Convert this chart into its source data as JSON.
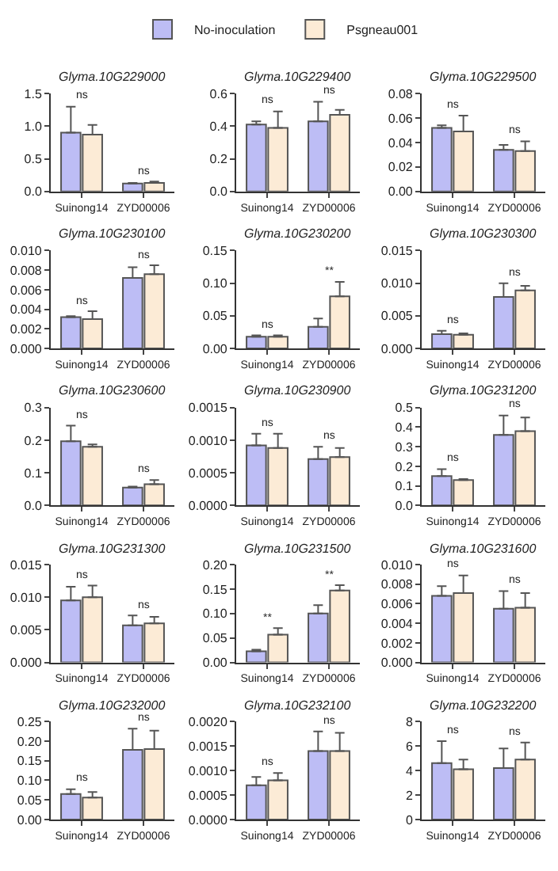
{
  "chart_data": [
    {
      "type": "bar",
      "title": "Glyma.10G229000",
      "categories": [
        "Suinong14",
        "ZYD00006"
      ],
      "legend": "top",
      "series": [
        {
          "name": "No-inoculation",
          "color": "#bdbdf5",
          "values": [
            0.9,
            0.12
          ],
          "errors": [
            [
              0.9,
              1.3
            ],
            [
              0.12,
              0.13
            ]
          ]
        },
        {
          "name": "Psgneau001",
          "color": "#fcebd6",
          "values": [
            0.87,
            0.13
          ],
          "errors": [
            [
              0.87,
              1.02
            ],
            [
              0.13,
              0.15
            ]
          ]
        }
      ],
      "ylim": [
        0,
        1.5
      ],
      "yticks": [
        {
          "value": 0,
          "label": "0.0"
        },
        {
          "value": 0.5,
          "label": "0.5"
        },
        {
          "value": 1,
          "label": "1.0"
        },
        {
          "value": 1.5,
          "label": "1.5"
        }
      ],
      "annotations": [
        {
          "text": "ns",
          "x": "Suinong14",
          "y": 1.3
        },
        {
          "text": "ns",
          "x": "ZYD00006",
          "y": 0.15
        }
      ]
    },
    {
      "type": "bar",
      "title": "Glyma.10G229400",
      "categories": [
        "Suinong14",
        "ZYD00006"
      ],
      "series": [
        {
          "color": "#bdbdf5",
          "values": [
            0.41,
            0.43
          ],
          "errors": [
            [
              0.41,
              0.43
            ],
            [
              0.43,
              0.55
            ]
          ]
        },
        {
          "color": "#fcebd6",
          "values": [
            0.39,
            0.47
          ],
          "errors": [
            [
              0.39,
              0.49
            ],
            [
              0.47,
              0.5
            ]
          ]
        }
      ],
      "ylim": [
        0,
        0.6
      ],
      "yticks": [
        {
          "value": 0,
          "label": "0.0"
        },
        0.2,
        0.4,
        0.6
      ],
      "annotations": [
        {
          "text": "ns",
          "x": "Suinong14",
          "y": 0.49
        },
        {
          "text": "ns",
          "x": "ZYD00006",
          "y": 0.55
        }
      ]
    },
    {
      "type": "bar",
      "title": "Glyma.10G229500",
      "categories": [
        "Suinong14",
        "ZYD00006"
      ],
      "series": [
        {
          "color": "#bdbdf5",
          "values": [
            0.052,
            0.034
          ],
          "errors": [
            [
              0.052,
              0.054
            ],
            [
              0.034,
              0.038
            ]
          ]
        },
        {
          "color": "#fcebd6",
          "values": [
            0.049,
            0.033
          ],
          "errors": [
            [
              0.049,
              0.062
            ],
            [
              0.033,
              0.041
            ]
          ]
        }
      ],
      "ylim": [
        0,
        0.08
      ],
      "yticks": [
        {
          "value": 0,
          "label": "0.00"
        },
        0.02,
        0.04,
        0.06,
        0.08
      ],
      "annotations": [
        {
          "text": "ns",
          "x": "Suinong14",
          "y": 0.062
        },
        {
          "text": "ns",
          "x": "ZYD00006",
          "y": 0.041
        }
      ]
    },
    {
      "type": "bar",
      "title": "Glyma.10G230100",
      "categories": [
        "Suinong14",
        "ZYD00006"
      ],
      "series": [
        {
          "color": "#bdbdf5",
          "values": [
            0.0032,
            0.0072
          ],
          "errors": [
            [
              0.0032,
              0.0033
            ],
            [
              0.0072,
              0.0083
            ]
          ]
        },
        {
          "color": "#fcebd6",
          "values": [
            0.003,
            0.0076
          ],
          "errors": [
            [
              0.003,
              0.0038
            ],
            [
              0.0076,
              0.0085
            ]
          ]
        }
      ],
      "ylim": [
        0,
        0.01
      ],
      "yticks": [
        {
          "value": 0,
          "label": "0.000"
        },
        {
          "value": 0.002,
          "label": "0.002"
        },
        {
          "value": 0.004,
          "label": "0.004"
        },
        {
          "value": 0.006,
          "label": "0.006"
        },
        {
          "value": 0.008,
          "label": "0.008"
        },
        {
          "value": 0.01,
          "label": "0.010"
        }
      ],
      "annotations": [
        {
          "text": "ns",
          "x": "Suinong14",
          "y": 0.0038
        },
        {
          "text": "ns",
          "x": "ZYD00006",
          "y": 0.0085
        }
      ]
    },
    {
      "type": "bar",
      "title": "Glyma.10G230200",
      "categories": [
        "Suinong14",
        "ZYD00006"
      ],
      "series": [
        {
          "color": "#bdbdf5",
          "values": [
            0.018,
            0.033
          ],
          "errors": [
            [
              0.018,
              0.02
            ],
            [
              0.033,
              0.046
            ]
          ]
        },
        {
          "color": "#fcebd6",
          "values": [
            0.018,
            0.08
          ],
          "errors": [
            [
              0.018,
              0.02
            ],
            [
              0.08,
              0.102
            ]
          ]
        }
      ],
      "ylim": [
        0,
        0.15
      ],
      "yticks": [
        {
          "value": 0,
          "label": "0.00"
        },
        {
          "value": 0.05,
          "label": "0.05"
        },
        {
          "value": 0.1,
          "label": "0.10"
        },
        {
          "value": 0.15,
          "label": "0.15"
        }
      ],
      "annotations": [
        {
          "text": "ns",
          "x": "Suinong14",
          "y": 0.02
        },
        {
          "text": "**",
          "x": "ZYD00006",
          "y": 0.102
        }
      ]
    },
    {
      "type": "bar",
      "title": "Glyma.10G230300",
      "categories": [
        "Suinong14",
        "ZYD00006"
      ],
      "series": [
        {
          "color": "#bdbdf5",
          "values": [
            0.0022,
            0.0079
          ],
          "errors": [
            [
              0.0022,
              0.0027
            ],
            [
              0.0079,
              0.01
            ]
          ]
        },
        {
          "color": "#fcebd6",
          "values": [
            0.0021,
            0.0089
          ],
          "errors": [
            [
              0.0021,
              0.0023
            ],
            [
              0.0089,
              0.0096
            ]
          ]
        }
      ],
      "ylim": [
        0,
        0.015
      ],
      "yticks": [
        {
          "value": 0,
          "label": "0.000"
        },
        {
          "value": 0.005,
          "label": "0.005"
        },
        {
          "value": 0.01,
          "label": "0.010"
        },
        {
          "value": 0.015,
          "label": "0.015"
        }
      ],
      "annotations": [
        {
          "text": "ns",
          "x": "Suinong14",
          "y": 0.0027
        },
        {
          "text": "ns",
          "x": "ZYD00006",
          "y": 0.01
        }
      ]
    },
    {
      "type": "bar",
      "title": "Glyma.10G230600",
      "categories": [
        "Suinong14",
        "ZYD00006"
      ],
      "series": [
        {
          "color": "#bdbdf5",
          "values": [
            0.197,
            0.055
          ],
          "errors": [
            [
              0.197,
              0.245
            ],
            [
              0.055,
              0.058
            ]
          ]
        },
        {
          "color": "#fcebd6",
          "values": [
            0.18,
            0.065
          ],
          "errors": [
            [
              0.18,
              0.187
            ],
            [
              0.065,
              0.078
            ]
          ]
        }
      ],
      "ylim": [
        0,
        0.3
      ],
      "yticks": [
        {
          "value": 0,
          "label": "0.0"
        },
        0.1,
        0.2,
        0.3
      ],
      "annotations": [
        {
          "text": "ns",
          "x": "Suinong14",
          "y": 0.245
        },
        {
          "text": "ns",
          "x": "ZYD00006",
          "y": 0.078
        }
      ]
    },
    {
      "type": "bar",
      "title": "Glyma.10G230900",
      "categories": [
        "Suinong14",
        "ZYD00006"
      ],
      "series": [
        {
          "color": "#bdbdf5",
          "values": [
            0.00092,
            0.00071
          ],
          "errors": [
            [
              0.00092,
              0.0011
            ],
            [
              0.00071,
              0.0009
            ]
          ]
        },
        {
          "color": "#fcebd6",
          "values": [
            0.00088,
            0.00074
          ],
          "errors": [
            [
              0.00088,
              0.0011
            ],
            [
              0.00074,
              0.00088
            ]
          ]
        }
      ],
      "ylim": [
        0,
        0.0015
      ],
      "yticks": [
        {
          "value": 0,
          "label": "0.0000"
        },
        {
          "value": 0.0005,
          "label": "0.0005"
        },
        {
          "value": 0.001,
          "label": "0.0010"
        },
        {
          "value": 0.0015,
          "label": "0.0015"
        }
      ],
      "annotations": [
        {
          "text": "ns",
          "x": "Suinong14",
          "y": 0.0011
        },
        {
          "text": "ns",
          "x": "ZYD00006",
          "y": 0.0009
        }
      ]
    },
    {
      "type": "bar",
      "title": "Glyma.10G231200",
      "categories": [
        "Suinong14",
        "ZYD00006"
      ],
      "series": [
        {
          "color": "#bdbdf5",
          "values": [
            0.15,
            0.36
          ],
          "errors": [
            [
              0.15,
              0.185
            ],
            [
              0.36,
              0.46
            ]
          ]
        },
        {
          "color": "#fcebd6",
          "values": [
            0.13,
            0.38
          ],
          "errors": [
            [
              0.13,
              0.135
            ],
            [
              0.38,
              0.45
            ]
          ]
        }
      ],
      "ylim": [
        0,
        0.5
      ],
      "yticks": [
        {
          "value": 0,
          "label": "0.0"
        },
        0.1,
        0.2,
        0.3,
        0.4,
        0.5
      ],
      "annotations": [
        {
          "text": "ns",
          "x": "Suinong14",
          "y": 0.185
        },
        {
          "text": "ns",
          "x": "ZYD00006",
          "y": 0.46
        }
      ]
    },
    {
      "type": "bar",
      "title": "Glyma.10G231300",
      "categories": [
        "Suinong14",
        "ZYD00006"
      ],
      "series": [
        {
          "color": "#bdbdf5",
          "values": [
            0.0095,
            0.0057
          ],
          "errors": [
            [
              0.0095,
              0.0116
            ],
            [
              0.0057,
              0.0072
            ]
          ]
        },
        {
          "color": "#fcebd6",
          "values": [
            0.01,
            0.006
          ],
          "errors": [
            [
              0.01,
              0.0118
            ],
            [
              0.006,
              0.007
            ]
          ]
        }
      ],
      "ylim": [
        0,
        0.015
      ],
      "yticks": [
        {
          "value": 0,
          "label": "0.000"
        },
        {
          "value": 0.005,
          "label": "0.005"
        },
        {
          "value": 0.01,
          "label": "0.010"
        },
        {
          "value": 0.015,
          "label": "0.015"
        }
      ],
      "annotations": [
        {
          "text": "ns",
          "x": "Suinong14",
          "y": 0.0118
        },
        {
          "text": "ns",
          "x": "ZYD00006",
          "y": 0.0072
        }
      ]
    },
    {
      "type": "bar",
      "title": "Glyma.10G231500",
      "categories": [
        "Suinong14",
        "ZYD00006"
      ],
      "series": [
        {
          "color": "#bdbdf5",
          "values": [
            0.023,
            0.1
          ],
          "errors": [
            [
              0.023,
              0.026
            ],
            [
              0.1,
              0.117
            ]
          ]
        },
        {
          "color": "#fcebd6",
          "values": [
            0.057,
            0.147
          ],
          "errors": [
            [
              0.057,
              0.07
            ],
            [
              0.147,
              0.158
            ]
          ]
        }
      ],
      "ylim": [
        0,
        0.2
      ],
      "yticks": [
        {
          "value": 0,
          "label": "0.00"
        },
        {
          "value": 0.05,
          "label": "0.05"
        },
        {
          "value": 0.1,
          "label": "0.10"
        },
        {
          "value": 0.15,
          "label": "0.15"
        },
        {
          "value": 0.2,
          "label": "0.20"
        }
      ],
      "annotations": [
        {
          "text": "**",
          "x": "Suinong14",
          "y": 0.07
        },
        {
          "text": "**",
          "x": "ZYD00006",
          "y": 0.158
        }
      ]
    },
    {
      "type": "bar",
      "title": "Glyma.10G231600",
      "categories": [
        "Suinong14",
        "ZYD00006"
      ],
      "series": [
        {
          "color": "#bdbdf5",
          "values": [
            0.0068,
            0.0055
          ],
          "errors": [
            [
              0.0068,
              0.0078
            ],
            [
              0.0055,
              0.0073
            ]
          ]
        },
        {
          "color": "#fcebd6",
          "values": [
            0.0071,
            0.0056
          ],
          "errors": [
            [
              0.0071,
              0.0089
            ],
            [
              0.0056,
              0.0071
            ]
          ]
        }
      ],
      "ylim": [
        0,
        0.01
      ],
      "yticks": [
        {
          "value": 0,
          "label": "0.000"
        },
        {
          "value": 0.002,
          "label": "0.002"
        },
        {
          "value": 0.004,
          "label": "0.004"
        },
        {
          "value": 0.006,
          "label": "0.006"
        },
        {
          "value": 0.008,
          "label": "0.008"
        },
        {
          "value": 0.01,
          "label": "0.010"
        }
      ],
      "annotations": [
        {
          "text": "ns",
          "x": "Suinong14",
          "y": 0.0089
        },
        {
          "text": "ns",
          "x": "ZYD00006",
          "y": 0.0073
        }
      ]
    },
    {
      "type": "bar",
      "title": "Glyma.10G232000",
      "categories": [
        "Suinong14",
        "ZYD00006"
      ],
      "series": [
        {
          "color": "#bdbdf5",
          "values": [
            0.065,
            0.178
          ],
          "errors": [
            [
              0.065,
              0.077
            ],
            [
              0.178,
              0.232
            ]
          ]
        },
        {
          "color": "#fcebd6",
          "values": [
            0.056,
            0.18
          ],
          "errors": [
            [
              0.056,
              0.07
            ],
            [
              0.18,
              0.227
            ]
          ]
        }
      ],
      "ylim": [
        0,
        0.25
      ],
      "yticks": [
        {
          "value": 0,
          "label": "0.00"
        },
        {
          "value": 0.05,
          "label": "0.05"
        },
        {
          "value": 0.1,
          "label": "0.10"
        },
        {
          "value": 0.15,
          "label": "0.15"
        },
        {
          "value": 0.2,
          "label": "0.20"
        },
        {
          "value": 0.25,
          "label": "0.25"
        }
      ],
      "annotations": [
        {
          "text": "ns",
          "x": "Suinong14",
          "y": 0.077
        },
        {
          "text": "ns",
          "x": "ZYD00006",
          "y": 0.232
        }
      ]
    },
    {
      "type": "bar",
      "title": "Glyma.10G232100",
      "categories": [
        "Suinong14",
        "ZYD00006"
      ],
      "series": [
        {
          "color": "#bdbdf5",
          "values": [
            0.0007,
            0.0014
          ],
          "errors": [
            [
              0.0007,
              0.00087
            ],
            [
              0.0014,
              0.0018
            ]
          ]
        },
        {
          "color": "#fcebd6",
          "values": [
            0.0008,
            0.0014
          ],
          "errors": [
            [
              0.0008,
              0.00095
            ],
            [
              0.0014,
              0.00177
            ]
          ]
        }
      ],
      "ylim": [
        0,
        0.002
      ],
      "yticks": [
        {
          "value": 0,
          "label": "0.0000"
        },
        {
          "value": 0.0005,
          "label": "0.0005"
        },
        {
          "value": 0.001,
          "label": "0.0010"
        },
        {
          "value": 0.0015,
          "label": "0.0015"
        },
        {
          "value": 0.002,
          "label": "0.0020"
        }
      ],
      "annotations": [
        {
          "text": "ns",
          "x": "Suinong14",
          "y": 0.00095
        },
        {
          "text": "ns",
          "x": "ZYD00006",
          "y": 0.0018
        }
      ]
    },
    {
      "type": "bar",
      "title": "Glyma.10G232200",
      "categories": [
        "Suinong14",
        "ZYD00006"
      ],
      "series": [
        {
          "color": "#bdbdf5",
          "values": [
            4.6,
            4.2
          ],
          "errors": [
            [
              4.6,
              6.4
            ],
            [
              4.2,
              5.8
            ]
          ]
        },
        {
          "color": "#fcebd6",
          "values": [
            4.1,
            4.9
          ],
          "errors": [
            [
              4.1,
              4.9
            ],
            [
              4.9,
              6.3
            ]
          ]
        }
      ],
      "ylim": [
        0,
        8
      ],
      "yticks": [
        0,
        2,
        4,
        6,
        8
      ],
      "annotations": [
        {
          "text": "ns",
          "x": "Suinong14",
          "y": 6.4
        },
        {
          "text": "ns",
          "x": "ZYD00006",
          "y": 6.3
        }
      ]
    }
  ]
}
